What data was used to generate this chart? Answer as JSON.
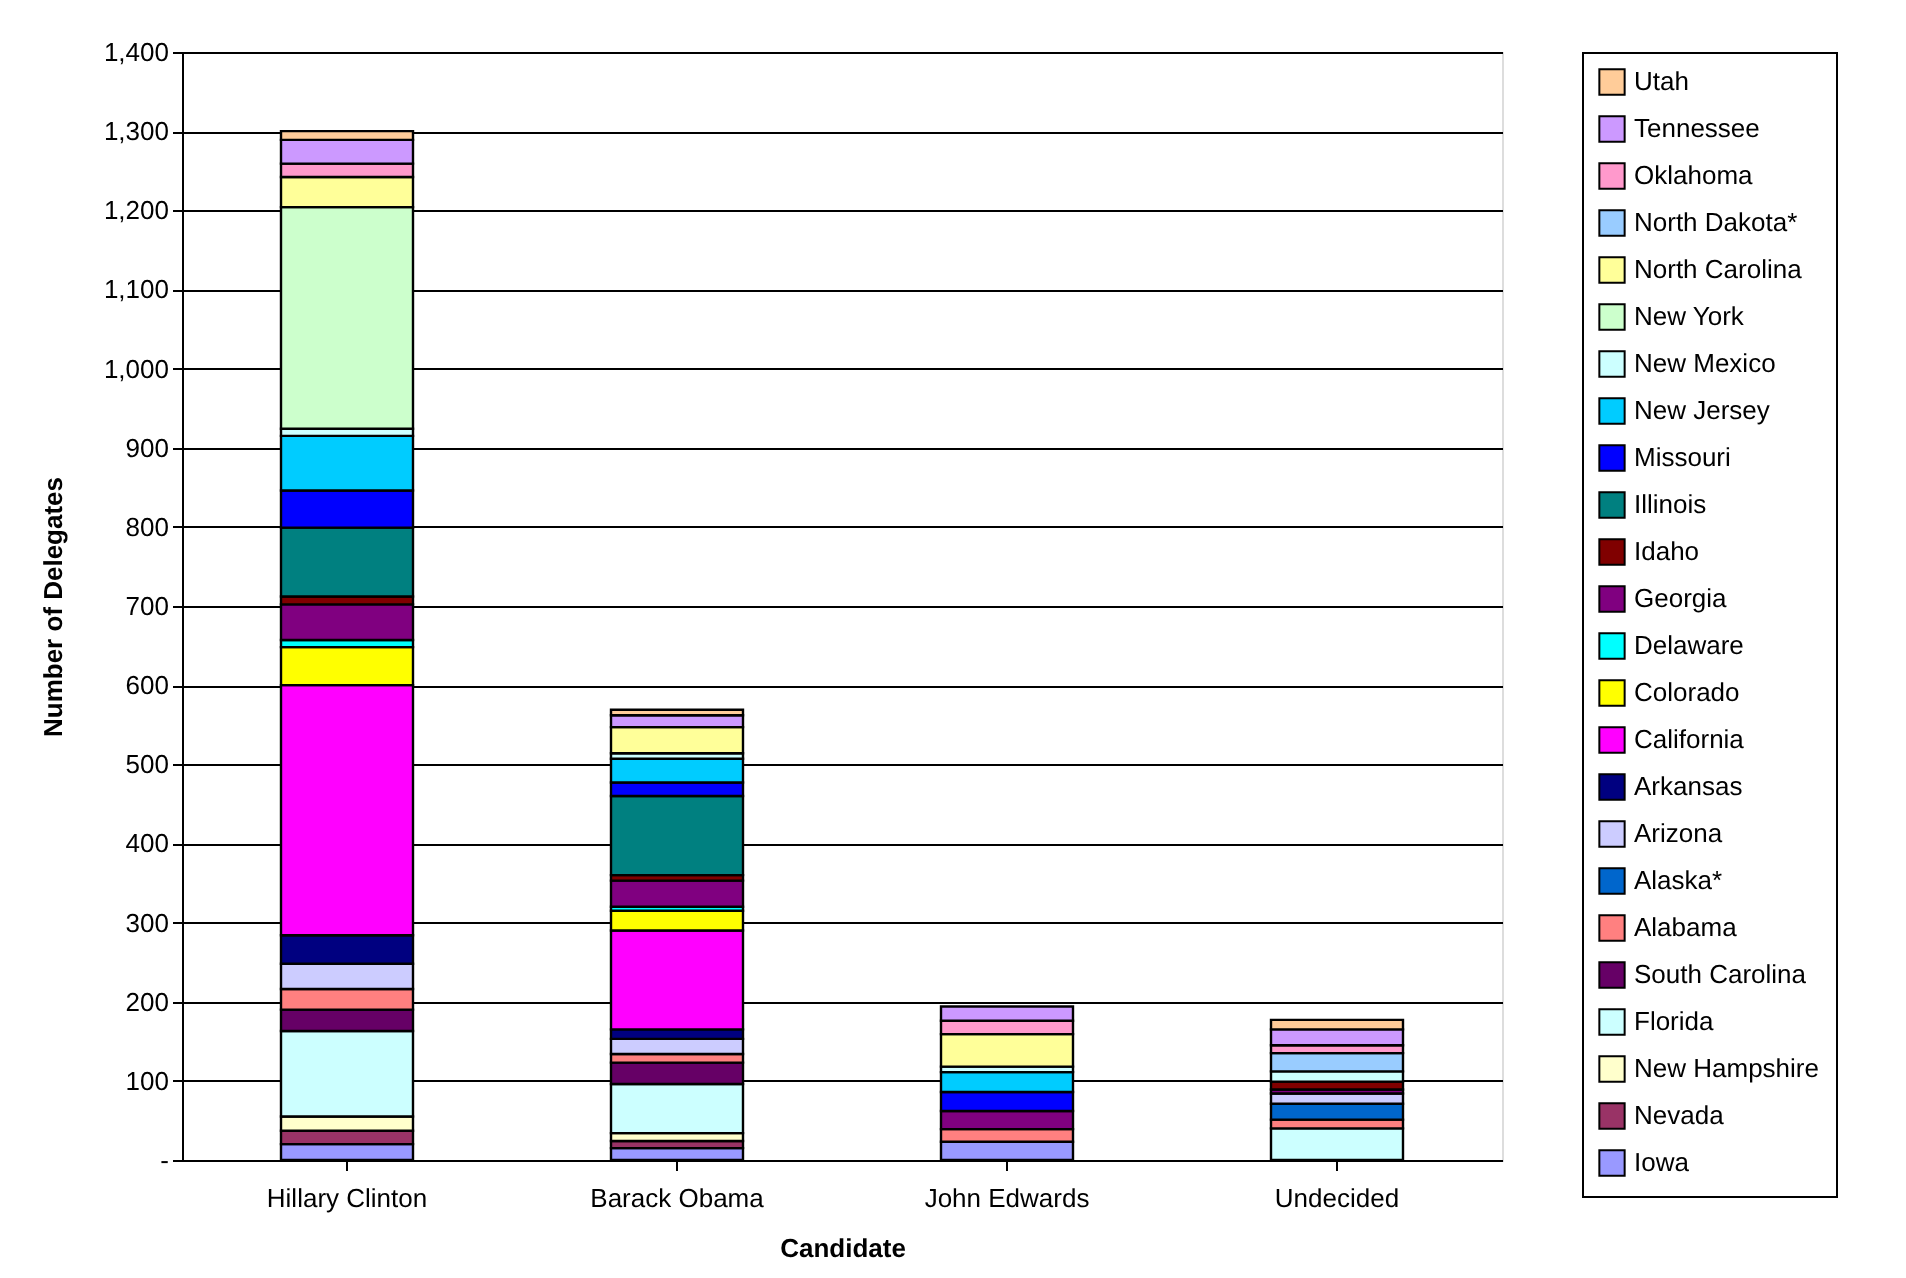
{
  "chart_data": {
    "type": "bar",
    "stacked": true,
    "xlabel": "Candidate",
    "ylabel": "Number of Delegates",
    "categories": [
      "Hillary Clinton",
      "Barack Obama",
      "John Edwards",
      "Undecided"
    ],
    "ylim": [
      0,
      1400
    ],
    "yticks": [
      {
        "value": 0,
        "label": "-"
      },
      100,
      200,
      300,
      400,
      500,
      600,
      700,
      800,
      900,
      {
        "value": 1000,
        "label": "1,000"
      },
      {
        "value": 1100,
        "label": "1,100"
      },
      {
        "value": 1200,
        "label": "1,200"
      },
      {
        "value": 1300,
        "label": "1,300"
      },
      {
        "value": 1400,
        "label": "1,400"
      }
    ],
    "grid": "y",
    "legend": "right",
    "series": [
      {
        "name": "Iowa",
        "color": "#9999ff",
        "values": [
          20,
          15,
          23,
          null
        ]
      },
      {
        "name": "Nevada",
        "color": "#993366",
        "values": [
          17,
          9,
          null,
          null
        ]
      },
      {
        "name": "New Hampshire",
        "color": "#ffffcc",
        "values": [
          18,
          10,
          null,
          null
        ]
      },
      {
        "name": "Florida",
        "color": "#ccffff",
        "values": [
          108,
          62,
          null,
          40
        ]
      },
      {
        "name": "South Carolina",
        "color": "#660066",
        "values": [
          27,
          27,
          null,
          null
        ]
      },
      {
        "name": "Alabama",
        "color": "#ff8080",
        "values": [
          26,
          11,
          16,
          11
        ]
      },
      {
        "name": "Alaska*",
        "color": "#0066cc",
        "values": [
          null,
          null,
          null,
          20
        ]
      },
      {
        "name": "Arizona",
        "color": "#ccccff",
        "values": [
          32,
          19,
          null,
          13
        ]
      },
      {
        "name": "Arkansas",
        "color": "#000080",
        "values": [
          36,
          12,
          null,
          null
        ]
      },
      {
        "name": "California",
        "color": "#ff00ff",
        "values": [
          316,
          125,
          null,
          null
        ]
      },
      {
        "name": "Colorado",
        "color": "#ffff00",
        "values": [
          48,
          25,
          null,
          null
        ]
      },
      {
        "name": "Delaware",
        "color": "#00ffff",
        "values": [
          9,
          5,
          null,
          null
        ]
      },
      {
        "name": "Georgia",
        "color": "#800080",
        "values": [
          45,
          33,
          23,
          5
        ]
      },
      {
        "name": "Idaho",
        "color": "#800000",
        "values": [
          10,
          7,
          null,
          10
        ]
      },
      {
        "name": "Illinois",
        "color": "#008080",
        "values": [
          87,
          100,
          null,
          null
        ]
      },
      {
        "name": "Missouri",
        "color": "#0000ff",
        "values": [
          47,
          17,
          24,
          null
        ]
      },
      {
        "name": "New Jersey",
        "color": "#00ccff",
        "values": [
          69,
          30,
          25,
          null
        ]
      },
      {
        "name": "New Mexico",
        "color": "#ccffff",
        "values": [
          9,
          7,
          7,
          13
        ]
      },
      {
        "name": "New York",
        "color": "#ccffcc",
        "values": [
          280,
          null,
          null,
          null
        ]
      },
      {
        "name": "North Carolina",
        "color": "#ffff99",
        "values": [
          38,
          33,
          41,
          null
        ]
      },
      {
        "name": "North Dakota*",
        "color": "#99ccff",
        "values": [
          null,
          null,
          null,
          23
        ]
      },
      {
        "name": "Oklahoma",
        "color": "#ff99cc",
        "values": [
          17,
          null,
          17,
          10
        ]
      },
      {
        "name": "Tennessee",
        "color": "#cc99ff",
        "values": [
          30,
          15,
          18,
          20
        ]
      },
      {
        "name": "Utah",
        "color": "#ffcc99",
        "values": [
          11,
          7,
          null,
          12
        ]
      }
    ]
  }
}
